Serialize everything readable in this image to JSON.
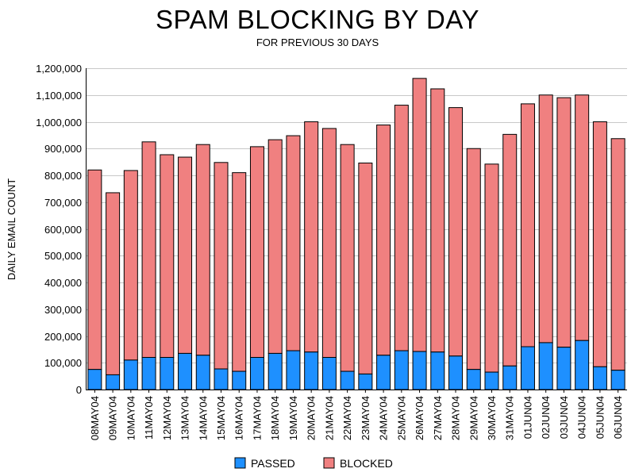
{
  "chart_data": {
    "type": "bar",
    "stacked": true,
    "title": "SPAM BLOCKING BY DAY",
    "subtitle": "FOR PREVIOUS 30 DAYS",
    "ylabel": "DAILY EMAIL COUNT",
    "xlabel": "",
    "ylim": [
      0,
      1200000
    ],
    "yticks": [
      0,
      100000,
      200000,
      300000,
      400000,
      500000,
      600000,
      700000,
      800000,
      900000,
      1000000,
      1100000,
      1200000
    ],
    "ytick_labels": [
      "0",
      "100,000",
      "200,000",
      "300,000",
      "400,000",
      "500,000",
      "600,000",
      "700,000",
      "800,000",
      "900,000",
      "1,000,000",
      "1,100,000",
      "1,200,000"
    ],
    "grid": "horizontal",
    "legend_position": "bottom",
    "categories": [
      "08MAY04",
      "09MAY04",
      "10MAY04",
      "11MAY04",
      "12MAY04",
      "13MAY04",
      "14MAY04",
      "15MAY04",
      "16MAY04",
      "17MAY04",
      "18MAY04",
      "19MAY04",
      "20MAY04",
      "21MAY04",
      "22MAY04",
      "23MAY04",
      "24MAY04",
      "25MAY04",
      "26MAY04",
      "27MAY04",
      "28MAY04",
      "29MAY04",
      "30MAY04",
      "31MAY04",
      "01JUN04",
      "02JUN04",
      "03JUN04",
      "04JUN04",
      "05JUN04",
      "06JUN04"
    ],
    "series": [
      {
        "name": "PASSED",
        "color": "#1e90ff",
        "values": [
          75000,
          55000,
          110000,
          120000,
          120000,
          135000,
          128000,
          77000,
          68000,
          120000,
          135000,
          145000,
          140000,
          120000,
          68000,
          58000,
          128000,
          145000,
          142000,
          140000,
          125000,
          75000,
          65000,
          88000,
          160000,
          175000,
          158000,
          183000,
          85000,
          72000
        ]
      },
      {
        "name": "BLOCKED",
        "color": "#f08080",
        "values": [
          745000,
          680000,
          708000,
          805000,
          757000,
          733000,
          787000,
          771000,
          742000,
          787000,
          798000,
          803000,
          860000,
          855000,
          847000,
          788000,
          860000,
          917000,
          1020000,
          983000,
          928000,
          825000,
          777000,
          865000,
          907000,
          925000,
          932000,
          917000,
          915000,
          865000
        ]
      }
    ]
  }
}
